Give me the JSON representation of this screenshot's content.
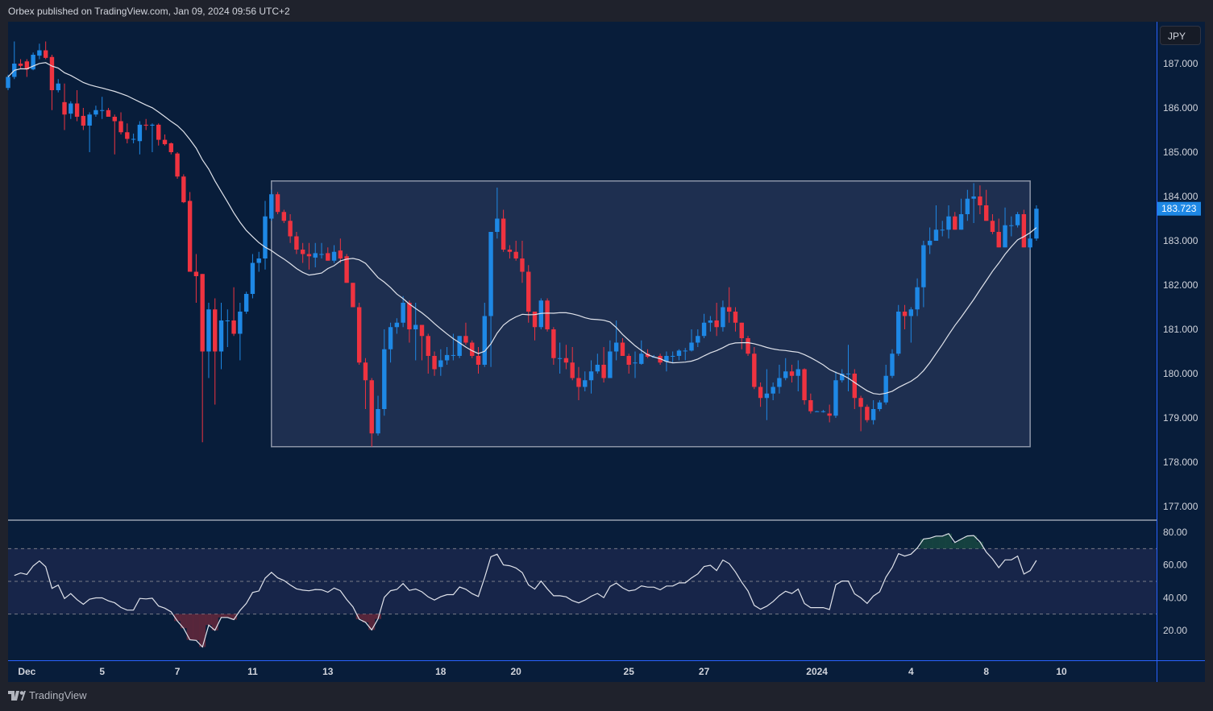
{
  "header": {
    "published": "Orbex published on TradingView.com, Jan 09, 2024 09:56 UTC+2"
  },
  "footer": {
    "brand": "TradingView",
    "logo_icon": "tradingview-logo-icon"
  },
  "currency_button": "JPY",
  "colors": {
    "background": "#081d3a",
    "up": "#1e88e5",
    "down": "#ef3340",
    "rectangle_fill": "#1e2f50",
    "rsi_band": "#172549",
    "line": "#e0e3eb",
    "axis_accent": "#2962ff"
  },
  "chart_data": [
    {
      "type": "candlestick",
      "timeframe": "4h",
      "price_axis": {
        "ticks": [
          "187.000",
          "186.000",
          "185.000",
          "184.000",
          "183.000",
          "182.000",
          "181.000",
          "180.000",
          "179.000",
          "178.000",
          "177.000"
        ],
        "ylim": [
          176.7,
          187.9
        ]
      },
      "last_price": "183.723",
      "time_axis": [
        {
          "label": "Dec",
          "index": 3
        },
        {
          "label": "5",
          "index": 15
        },
        {
          "label": "7",
          "index": 27
        },
        {
          "label": "11",
          "index": 39
        },
        {
          "label": "13",
          "index": 51
        },
        {
          "label": "18",
          "index": 69
        },
        {
          "label": "20",
          "index": 81
        },
        {
          "label": "25",
          "index": 99
        },
        {
          "label": "27",
          "index": 111
        },
        {
          "label": "2024",
          "index": 129
        },
        {
          "label": "4",
          "index": 144
        },
        {
          "label": "8",
          "index": 156
        },
        {
          "label": "10",
          "index": 168
        }
      ],
      "moving_average": {
        "type": "SMA",
        "period": 20
      },
      "range_rectangle": {
        "top": 184.35,
        "bottom": 178.35,
        "start_index": 42,
        "end_index": 163
      },
      "ohlc": [
        [
          186.45,
          186.75,
          186.4,
          186.7
        ],
        [
          186.7,
          187.5,
          186.65,
          187.0
        ],
        [
          187.0,
          187.1,
          186.9,
          186.95
        ],
        [
          187.05,
          187.1,
          186.7,
          186.87
        ],
        [
          186.87,
          187.25,
          186.85,
          187.2
        ],
        [
          187.18,
          187.45,
          187.1,
          187.3
        ],
        [
          187.3,
          187.5,
          187.1,
          187.13
        ],
        [
          187.15,
          187.2,
          185.95,
          186.4
        ],
        [
          186.4,
          186.65,
          186.35,
          186.55
        ],
        [
          186.13,
          186.55,
          185.5,
          185.85
        ],
        [
          185.87,
          186.15,
          185.75,
          186.1
        ],
        [
          186.1,
          186.4,
          185.7,
          185.8
        ],
        [
          185.82,
          186.0,
          185.5,
          185.6
        ],
        [
          185.6,
          185.9,
          185.0,
          185.85
        ],
        [
          185.85,
          186.05,
          185.8,
          185.95
        ],
        [
          185.95,
          186.25,
          185.75,
          185.95
        ],
        [
          185.95,
          186.0,
          185.8,
          185.8
        ],
        [
          185.8,
          185.85,
          184.95,
          185.7
        ],
        [
          185.7,
          185.9,
          185.4,
          185.45
        ],
        [
          185.45,
          185.65,
          185.2,
          185.3
        ],
        [
          185.3,
          185.42,
          185.2,
          185.3
        ],
        [
          185.25,
          185.7,
          184.95,
          185.62
        ],
        [
          185.62,
          185.75,
          185.5,
          185.6
        ],
        [
          185.6,
          185.65,
          185.0,
          185.62
        ],
        [
          185.62,
          185.65,
          185.15,
          185.28
        ],
        [
          185.28,
          185.4,
          185.15,
          185.18
        ],
        [
          185.2,
          185.22,
          184.95,
          185.0
        ],
        [
          184.97,
          185.0,
          184.4,
          184.45
        ],
        [
          184.45,
          184.5,
          183.85,
          183.87
        ],
        [
          183.9,
          184.1,
          182.3,
          182.3
        ],
        [
          182.3,
          182.7,
          181.6,
          182.2
        ],
        [
          182.25,
          182.25,
          178.45,
          180.5
        ],
        [
          180.5,
          181.6,
          179.9,
          181.45
        ],
        [
          181.45,
          181.7,
          179.3,
          180.5
        ],
        [
          180.5,
          181.6,
          180.1,
          181.2
        ],
        [
          181.2,
          181.45,
          180.6,
          181.2
        ],
        [
          181.2,
          181.95,
          180.85,
          180.9
        ],
        [
          180.9,
          181.6,
          180.3,
          181.4
        ],
        [
          181.4,
          181.85,
          181.35,
          181.8
        ],
        [
          181.8,
          182.7,
          181.7,
          182.5
        ],
        [
          182.5,
          182.75,
          182.3,
          182.6
        ],
        [
          182.6,
          183.9,
          182.35,
          183.55
        ],
        [
          183.5,
          184.15,
          183.45,
          184.05
        ],
        [
          184.05,
          184.1,
          183.6,
          183.65
        ],
        [
          183.65,
          183.7,
          183.4,
          183.45
        ],
        [
          183.45,
          183.6,
          182.95,
          183.1
        ],
        [
          183.1,
          183.2,
          182.7,
          182.8
        ],
        [
          182.8,
          182.95,
          182.5,
          182.7
        ],
        [
          182.7,
          182.95,
          182.35,
          182.65
        ],
        [
          182.62,
          182.95,
          182.4,
          182.72
        ],
        [
          182.7,
          182.95,
          182.6,
          182.7
        ],
        [
          182.72,
          182.85,
          182.55,
          182.55
        ],
        [
          182.55,
          182.9,
          182.5,
          182.75
        ],
        [
          182.78,
          183.05,
          182.5,
          182.6
        ],
        [
          182.65,
          182.7,
          182.05,
          182.05
        ],
        [
          182.05,
          182.05,
          181.5,
          181.5
        ],
        [
          181.5,
          181.6,
          180.2,
          180.25
        ],
        [
          180.25,
          180.35,
          179.2,
          179.85
        ],
        [
          179.85,
          179.9,
          178.35,
          178.65
        ],
        [
          178.65,
          179.5,
          178.6,
          179.2
        ],
        [
          179.2,
          181.0,
          179.05,
          180.55
        ],
        [
          180.55,
          181.15,
          180.25,
          181.05
        ],
        [
          181.05,
          181.25,
          180.9,
          181.15
        ],
        [
          181.15,
          181.75,
          181.05,
          181.6
        ],
        [
          181.6,
          181.65,
          180.7,
          181.0
        ],
        [
          181.0,
          181.6,
          180.3,
          181.1
        ],
        [
          181.1,
          181.1,
          180.3,
          180.85
        ],
        [
          180.85,
          180.9,
          180.0,
          180.4
        ],
        [
          180.4,
          180.5,
          179.95,
          180.1
        ],
        [
          180.15,
          180.55,
          179.95,
          180.3
        ],
        [
          180.3,
          180.6,
          180.2,
          180.42
        ],
        [
          180.42,
          180.9,
          180.3,
          180.42
        ],
        [
          180.4,
          180.85,
          180.35,
          180.85
        ],
        [
          180.85,
          181.15,
          180.65,
          180.7
        ],
        [
          180.7,
          180.75,
          180.35,
          180.4
        ],
        [
          180.4,
          180.6,
          180.0,
          180.2
        ],
        [
          180.2,
          181.6,
          180.15,
          181.3
        ],
        [
          181.3,
          183.2,
          180.15,
          183.2
        ],
        [
          183.2,
          184.2,
          183.05,
          183.5
        ],
        [
          183.5,
          183.7,
          182.75,
          182.8
        ],
        [
          182.8,
          182.9,
          182.6,
          182.75
        ],
        [
          182.75,
          183.0,
          182.55,
          182.6
        ],
        [
          182.6,
          183.0,
          182.05,
          182.3
        ],
        [
          182.3,
          182.45,
          181.15,
          181.4
        ],
        [
          181.4,
          181.4,
          180.75,
          181.05
        ],
        [
          181.05,
          181.7,
          181.0,
          181.65
        ],
        [
          181.65,
          181.7,
          180.95,
          181.0
        ],
        [
          181.0,
          181.05,
          180.2,
          180.35
        ],
        [
          180.35,
          180.7,
          180.0,
          180.35
        ],
        [
          180.35,
          180.65,
          180.1,
          180.25
        ],
        [
          180.25,
          180.6,
          179.85,
          179.9
        ],
        [
          179.9,
          180.15,
          179.4,
          179.7
        ],
        [
          179.7,
          180.05,
          179.6,
          179.85
        ],
        [
          179.85,
          180.3,
          179.55,
          180.05
        ],
        [
          180.05,
          180.45,
          180.0,
          180.2
        ],
        [
          180.2,
          180.6,
          179.8,
          179.9
        ],
        [
          179.9,
          180.75,
          179.9,
          180.5
        ],
        [
          180.5,
          181.2,
          180.3,
          180.7
        ],
        [
          180.7,
          180.8,
          180.4,
          180.4
        ],
        [
          180.4,
          180.45,
          180.0,
          180.2
        ],
        [
          180.25,
          180.5,
          179.9,
          180.25
        ],
        [
          180.22,
          180.75,
          180.2,
          180.45
        ],
        [
          180.45,
          180.55,
          180.35,
          180.38
        ],
        [
          180.38,
          180.42,
          180.36,
          180.38
        ],
        [
          180.4,
          180.45,
          180.2,
          180.25
        ],
        [
          180.27,
          180.5,
          180.05,
          180.4
        ],
        [
          180.4,
          180.5,
          180.25,
          180.4
        ],
        [
          180.4,
          180.55,
          180.3,
          180.52
        ],
        [
          180.52,
          180.58,
          180.3,
          180.52
        ],
        [
          180.52,
          181.0,
          180.5,
          180.7
        ],
        [
          180.7,
          181.0,
          180.6,
          180.85
        ],
        [
          180.85,
          181.35,
          180.8,
          181.15
        ],
        [
          181.15,
          181.3,
          180.95,
          181.2
        ],
        [
          181.2,
          181.6,
          180.85,
          181.05
        ],
        [
          181.05,
          181.65,
          180.95,
          181.5
        ],
        [
          181.5,
          181.95,
          181.15,
          181.4
        ],
        [
          181.4,
          181.5,
          180.95,
          181.15
        ],
        [
          181.15,
          181.15,
          180.55,
          180.8
        ],
        [
          180.8,
          180.85,
          180.4,
          180.45
        ],
        [
          180.45,
          180.6,
          179.65,
          179.7
        ],
        [
          179.7,
          179.8,
          179.25,
          179.45
        ],
        [
          179.45,
          180.1,
          178.95,
          179.55
        ],
        [
          179.55,
          179.8,
          179.4,
          179.7
        ],
        [
          179.7,
          180.2,
          179.55,
          179.9
        ],
        [
          179.9,
          180.35,
          179.85,
          180.05
        ],
        [
          180.05,
          180.2,
          179.8,
          179.95
        ],
        [
          179.95,
          180.3,
          179.6,
          180.1
        ],
        [
          180.1,
          180.12,
          179.3,
          179.4
        ],
        [
          179.4,
          179.55,
          179.1,
          179.15
        ],
        [
          179.15,
          179.16,
          179.14,
          179.15
        ],
        [
          179.15,
          179.18,
          179.12,
          179.15
        ],
        [
          179.1,
          179.3,
          178.9,
          179.05
        ],
        [
          179.05,
          180.05,
          179.0,
          179.85
        ],
        [
          179.85,
          180.1,
          179.8,
          180.0
        ],
        [
          180.0,
          180.65,
          179.6,
          180.0
        ],
        [
          180.0,
          180.1,
          179.2,
          179.45
        ],
        [
          179.45,
          179.5,
          178.7,
          179.25
        ],
        [
          179.25,
          179.3,
          178.9,
          178.95
        ],
        [
          178.95,
          179.4,
          178.85,
          179.2
        ],
        [
          179.2,
          179.4,
          179.15,
          179.35
        ],
        [
          179.35,
          180.2,
          179.3,
          179.95
        ],
        [
          179.95,
          180.55,
          179.9,
          180.45
        ],
        [
          180.45,
          181.55,
          180.4,
          181.4
        ],
        [
          181.4,
          181.55,
          181.0,
          181.3
        ],
        [
          181.3,
          181.5,
          180.7,
          181.45
        ],
        [
          181.45,
          182.15,
          181.3,
          181.95
        ],
        [
          181.95,
          183.0,
          181.5,
          182.9
        ],
        [
          182.9,
          183.3,
          182.7,
          183.0
        ],
        [
          183.0,
          183.8,
          183.0,
          183.25
        ],
        [
          183.25,
          183.45,
          183.1,
          183.25
        ],
        [
          183.25,
          183.8,
          183.05,
          183.55
        ],
        [
          183.55,
          183.65,
          183.25,
          183.25
        ],
        [
          183.25,
          183.95,
          183.25,
          183.6
        ],
        [
          183.6,
          184.15,
          183.45,
          183.95
        ],
        [
          183.95,
          184.3,
          183.4,
          184.0
        ],
        [
          184.0,
          184.25,
          183.6,
          183.8
        ],
        [
          183.8,
          184.15,
          183.45,
          183.45
        ],
        [
          183.45,
          183.6,
          183.15,
          183.2
        ],
        [
          183.2,
          183.5,
          182.85,
          182.85
        ],
        [
          182.85,
          183.75,
          182.85,
          183.35
        ],
        [
          183.35,
          183.55,
          183.1,
          183.35
        ],
        [
          183.35,
          183.65,
          183.3,
          183.6
        ],
        [
          183.6,
          183.7,
          182.85,
          182.85
        ],
        [
          182.85,
          183.15,
          182.8,
          183.05
        ],
        [
          183.05,
          183.8,
          183.0,
          183.723
        ]
      ]
    },
    {
      "type": "line",
      "indicator": "RSI",
      "period": 14,
      "y_ticks": [
        "80.00",
        "60.00",
        "40.00",
        "20.00"
      ],
      "ylim": [
        0,
        90
      ],
      "levels": [
        70,
        50,
        30
      ]
    }
  ]
}
